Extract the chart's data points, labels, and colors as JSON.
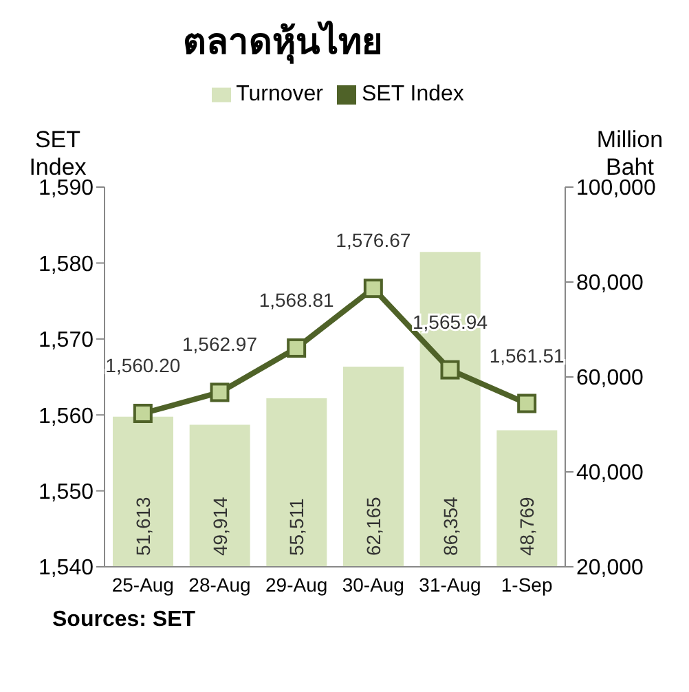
{
  "chart_data": {
    "type": "bar",
    "title": "ตลาดหุ้นไทย",
    "ylabel": "SET Index",
    "y2label": "Million Baht",
    "categories": [
      "25-Aug",
      "28-Aug",
      "29-Aug",
      "30-Aug",
      "31-Aug",
      "1-Sep"
    ],
    "series": [
      {
        "name": "Turnover",
        "axis": "y2",
        "color": "#d7e4bd",
        "values": [
          51613,
          49914,
          55511,
          62165,
          86354,
          48769
        ],
        "value_labels": [
          "51,613",
          "49,914",
          "55,511",
          "62,165",
          "86,354",
          "48,769"
        ]
      },
      {
        "name": "SET Index",
        "type": "line",
        "axis": "y",
        "color": "#4f6228",
        "marker": "square",
        "values": [
          1560.2,
          1562.97,
          1568.81,
          1576.67,
          1565.94,
          1561.51
        ],
        "value_labels": [
          "1,560.20",
          "1,562.97",
          "1,568.81",
          "1,576.67",
          "1,565.94",
          "1,561.51"
        ]
      }
    ],
    "ylim": [
      1540,
      1590
    ],
    "yticks": [
      {
        "value": 1540,
        "label": "1,540"
      },
      {
        "value": 1550,
        "label": "1,550"
      },
      {
        "value": 1560,
        "label": "1,560"
      },
      {
        "value": 1570,
        "label": "1,570"
      },
      {
        "value": 1580,
        "label": "1,580"
      },
      {
        "value": 1590,
        "label": "1,590"
      }
    ],
    "y2lim": [
      20000,
      100000
    ],
    "y2ticks": [
      {
        "value": 20000,
        "label": "20,000"
      },
      {
        "value": 40000,
        "label": "40,000"
      },
      {
        "value": 60000,
        "label": "60,000"
      },
      {
        "value": 80000,
        "label": "80,000"
      },
      {
        "value": 100000,
        "label": "100,000"
      }
    ],
    "legend": "top",
    "annotations": [
      "Sources: SET"
    ]
  }
}
